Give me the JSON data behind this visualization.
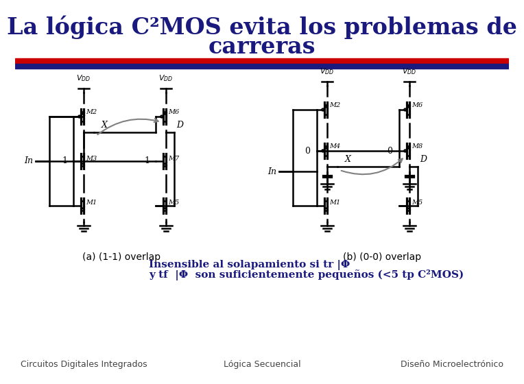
{
  "title_line1": "La lógica C²MOS evita los problemas de",
  "title_line2": "carreras",
  "title_color": "#1a1a7e",
  "title_fontsize": 24,
  "bar_color_red": "#cc0000",
  "bar_color_blue": "#1a1a7e",
  "caption_a": "(a) (1-1) overlap",
  "caption_b": "(b) (0-0) overlap",
  "insensible_line1": "Insensible al solapamiento si tr |Φ",
  "insensible_line2": "y tf  |Φ  son suficientemente pequeños (<5 tp C²MOS)",
  "footer_left": "Circuitos Digitales Integrados",
  "footer_center": "Lógica Secuencial",
  "footer_right": "Diseño Microelectrónico",
  "footer_fontsize": 9,
  "caption_fontsize": 10,
  "insensible_fontsize": 11,
  "bg_color": "#ffffff",
  "text_color": "#000000"
}
